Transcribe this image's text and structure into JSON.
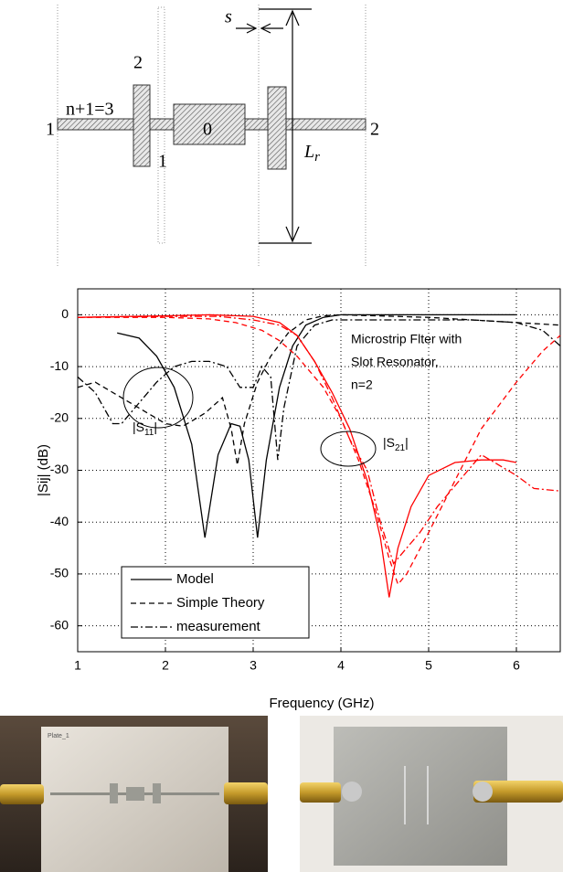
{
  "diagram": {
    "labels": {
      "s": "s",
      "top_port": "2",
      "n_label": "n+1=3",
      "left_port": "1",
      "center": "0",
      "lower_port": "1",
      "right_port": "2",
      "lr_main": "L",
      "lr_sub": "r"
    }
  },
  "chart_data": {
    "type": "line",
    "x_label": "Frequency (GHz)",
    "y_label": "|Sij| (dB)",
    "xlim": [
      1,
      6.5
    ],
    "ylim": [
      -65,
      5
    ],
    "xticks": [
      1,
      2,
      3,
      4,
      5,
      6
    ],
    "yticks": [
      0,
      -10,
      -20,
      -30,
      -40,
      -50,
      -60
    ],
    "grid": true,
    "annotations": {
      "title_lines": [
        "Microstrip Flter with",
        "Slot Resonator,",
        "n=2"
      ],
      "s11": {
        "main": "|S",
        "sub": "11",
        "end": "|"
      },
      "s21": {
        "main": "|S",
        "sub": "21",
        "end": "|"
      }
    },
    "legend": [
      {
        "name": "Model",
        "dash": "solid"
      },
      {
        "name": "Simple Theory",
        "dash": "dashed"
      },
      {
        "name": "measurement",
        "dash": "dashdot"
      }
    ],
    "series": [
      {
        "color": "#000000",
        "dash": "solid",
        "x": [
          1.45,
          1.7,
          1.9,
          2.1,
          2.3,
          2.45,
          2.6,
          2.75,
          2.85,
          2.95,
          3.05,
          3.15,
          3.3,
          3.45,
          3.6,
          3.8,
          4,
          5,
          6
        ],
        "values": [
          -3.5,
          -4.5,
          -8,
          -14,
          -25,
          -43,
          -27,
          -21,
          -21.5,
          -28,
          -43,
          -28,
          -14,
          -6,
          -2,
          -0.5,
          0,
          0,
          0
        ]
      },
      {
        "color": "#000000",
        "dash": "dashed",
        "x": [
          1,
          1.2,
          1.5,
          1.8,
          2,
          2.2,
          2.45,
          2.65,
          2.75,
          2.82,
          2.9,
          3.05,
          3.2,
          3.4,
          3.6,
          3.8,
          4,
          5,
          6,
          6.5
        ],
        "values": [
          -14,
          -13,
          -16,
          -19,
          -21,
          -21.5,
          -19,
          -16,
          -22,
          -29,
          -21,
          -13,
          -8,
          -3.5,
          -1,
          -0.2,
          0,
          -0.5,
          -1.5,
          -2
        ]
      },
      {
        "color": "#000000",
        "dash": "dashdot",
        "x": [
          1,
          1.2,
          1.4,
          1.5,
          1.7,
          1.9,
          2.1,
          2.3,
          2.5,
          2.7,
          2.85,
          3,
          3.1,
          3.2,
          3.28,
          3.35,
          3.5,
          3.7,
          3.9,
          4.5,
          5,
          5.5,
          6,
          6.3,
          6.5
        ],
        "values": [
          -12,
          -15,
          -21,
          -21,
          -17,
          -13,
          -10,
          -9,
          -9,
          -10,
          -14,
          -14,
          -10,
          -12,
          -28,
          -18,
          -6,
          -2,
          -1,
          -1,
          -1,
          -1,
          -1.5,
          -3,
          -6
        ]
      },
      {
        "color": "#ff0000",
        "dash": "solid",
        "x": [
          1,
          2,
          2.5,
          3,
          3.3,
          3.5,
          3.7,
          3.9,
          4.1,
          4.3,
          4.45,
          4.55,
          4.65,
          4.8,
          5,
          5.3,
          5.6,
          5.85,
          6
        ],
        "values": [
          -0.5,
          -0.2,
          0,
          -0.3,
          -1.5,
          -4,
          -9,
          -15,
          -22,
          -32,
          -43,
          -54.5,
          -45,
          -37,
          -31,
          -28.5,
          -28,
          -28,
          -28.5
        ]
      },
      {
        "color": "#ff0000",
        "dash": "dashed",
        "x": [
          1,
          2,
          2.5,
          2.8,
          3.1,
          3.3,
          3.5,
          3.8,
          4,
          4.2,
          4.4,
          4.55,
          4.65,
          4.75,
          5,
          5.3,
          5.6,
          6,
          6.3,
          6.5
        ],
        "values": [
          -0.5,
          -0.5,
          -0.8,
          -1.5,
          -3,
          -5,
          -8,
          -14,
          -20,
          -28,
          -38,
          -47,
          -52,
          -50,
          -42,
          -32,
          -22,
          -13,
          -7,
          -4
        ]
      },
      {
        "color": "#ff0000",
        "dash": "dashdot",
        "x": [
          1,
          2,
          2.6,
          3,
          3.3,
          3.5,
          3.7,
          3.9,
          4.1,
          4.3,
          4.45,
          4.6,
          4.7,
          4.9,
          5.1,
          5.35,
          5.6,
          5.8,
          6,
          6.2,
          6.5
        ],
        "values": [
          -0.5,
          -0.3,
          -0.3,
          -1,
          -2,
          -4,
          -9,
          -16,
          -24,
          -30,
          -40,
          -48,
          -46,
          -42,
          -37,
          -32,
          -27,
          -29,
          -31,
          -33.5,
          -34
        ]
      }
    ]
  },
  "photos": {
    "label": "Plate_1"
  }
}
